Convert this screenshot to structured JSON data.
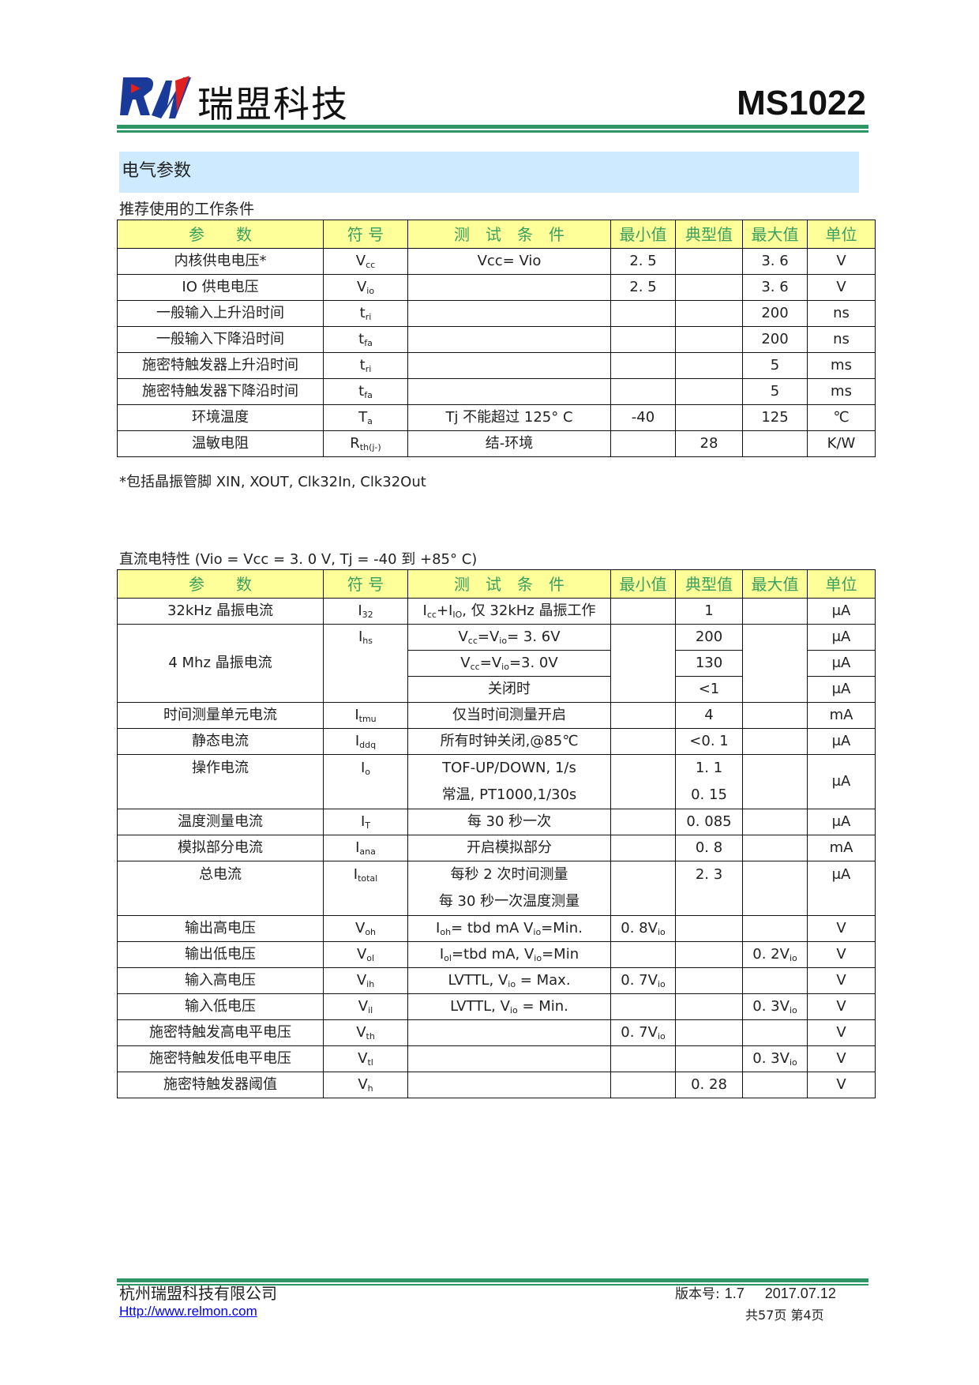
{
  "header": {
    "company": "瑞盟科技",
    "logo_text": "RM",
    "model": "MS1022",
    "brand_color": "#2e9565"
  },
  "section": {
    "title": "电气参数"
  },
  "rec": {
    "title": "推荐使用的工作条件",
    "headers": [
      "参　　数",
      "符 号",
      "测　试　条　件",
      "最小值",
      "典型值",
      "最大值",
      "单位"
    ],
    "rows": [
      {
        "param": "内核供电电压*",
        "sym": [
          "V",
          "cc"
        ],
        "cond": "Vcc= Vio",
        "min": "2. 5",
        "typ": "",
        "max": "3. 6",
        "unit": "V"
      },
      {
        "param": "IO 供电电压",
        "sym": [
          "V",
          "io"
        ],
        "cond": "",
        "min": "2. 5",
        "typ": "",
        "max": "3. 6",
        "unit": "V"
      },
      {
        "param": "一般输入上升沿时间",
        "sym": [
          "t",
          "ri"
        ],
        "cond": "",
        "min": "",
        "typ": "",
        "max": "200",
        "unit": "ns"
      },
      {
        "param": "一般输入下降沿时间",
        "sym": [
          "t",
          "fa"
        ],
        "cond": "",
        "min": "",
        "typ": "",
        "max": "200",
        "unit": "ns"
      },
      {
        "param": "施密特触发器上升沿时间",
        "sym": [
          "t",
          "ri"
        ],
        "cond": "",
        "min": "",
        "typ": "",
        "max": "5",
        "unit": "ms"
      },
      {
        "param": "施密特触发器下降沿时间",
        "sym": [
          "t",
          "fa"
        ],
        "cond": "",
        "min": "",
        "typ": "",
        "max": "5",
        "unit": "ms"
      },
      {
        "param": "环境温度",
        "sym": [
          "T",
          "a"
        ],
        "cond": "Tj 不能超过 125° C",
        "min": "-40",
        "typ": "",
        "max": "125",
        "unit": "℃"
      },
      {
        "param": "温敏电阻",
        "sym": [
          "R",
          "th(j-)"
        ],
        "cond": "结-环境",
        "min": "",
        "typ": "28",
        "max": "",
        "unit": "K/W"
      }
    ],
    "footnote": "*包括晶振管脚 XIN, XOUT, Clk32In, Clk32Out"
  },
  "dc": {
    "title": "直流电特性 (Vio = Vcc = 3. 0 V, Tj = -40 到 +85° C)",
    "headers": [
      "参　　数",
      "符 号",
      "测　试　条　件",
      "最小值",
      "典型值",
      "最大值",
      "单位"
    ],
    "rows": [
      {
        "param": "32kHz 晶振电流",
        "sym": [
          "I",
          "32"
        ],
        "cond": [
          "I",
          "cc",
          "+I",
          "IO",
          ", 仅 32kHz 晶振工作"
        ],
        "typ": "1",
        "unit": "μA"
      },
      {
        "param": "4 Mhz 晶振电流",
        "sym": [
          "I",
          "hs"
        ],
        "sub": [
          {
            "cond": [
              "V",
              "cc",
              "=V",
              "io",
              "= 3. 6V"
            ],
            "typ": "200",
            "unit": "μA"
          },
          {
            "cond": [
              "V",
              "cc",
              "=V",
              "io",
              "=3. 0V"
            ],
            "typ": "130",
            "unit": "μA"
          },
          {
            "cond": [
              "关闭时"
            ],
            "typ": "<1",
            "unit": "μA"
          }
        ]
      },
      {
        "param": "时间测量单元电流",
        "sym": [
          "I",
          "tmu"
        ],
        "cond": [
          "仅当时间测量开启"
        ],
        "typ": "4",
        "unit": "mA"
      },
      {
        "param": "静态电流",
        "sym": [
          "I",
          "ddq"
        ],
        "cond": [
          "所有时钟关闭,@85℃"
        ],
        "typ": "<0. 1",
        "unit": "μA"
      },
      {
        "param": "操作电流",
        "sym": [
          "I",
          "o"
        ],
        "cond_lines": [
          "TOF-UP/DOWN, 1/s",
          "常温, PT1000,1/30s"
        ],
        "typ_lines": [
          "1. 1",
          "0. 15"
        ],
        "unit": "μA"
      },
      {
        "param": "温度测量电流",
        "sym": [
          "I",
          "T"
        ],
        "cond": [
          "每 30 秒一次"
        ],
        "typ": "0. 085",
        "unit": "μA"
      },
      {
        "param": "模拟部分电流",
        "sym": [
          "I",
          "ana"
        ],
        "cond": [
          "开启模拟部分"
        ],
        "typ": "0. 8",
        "unit": "mA"
      },
      {
        "param": "总电流",
        "sym": [
          "I",
          "total"
        ],
        "cond_lines": [
          "每秒 2 次时间测量",
          "每 30 秒一次温度测量"
        ],
        "typ": "2. 3",
        "unit": "μA"
      },
      {
        "param": "输出高电压",
        "sym": [
          "V",
          "oh"
        ],
        "cond": [
          "I",
          "oh",
          "= tbd mA V",
          "io",
          "=Min."
        ],
        "min": [
          "0. 8V",
          "io"
        ],
        "unit": "V"
      },
      {
        "param": "输出低电压",
        "sym": [
          "V",
          "ol"
        ],
        "cond": [
          "I",
          "ol",
          "=tbd mA, V",
          "io",
          "=Min"
        ],
        "max": [
          "0. 2V",
          "io"
        ],
        "unit": "V"
      },
      {
        "param": "输入高电压",
        "sym": [
          "V",
          "ih"
        ],
        "cond": [
          "LVTTL,  V",
          "io",
          " = Max."
        ],
        "min": [
          "0. 7V",
          "io"
        ],
        "unit": "V"
      },
      {
        "param": "输入低电压",
        "sym": [
          "V",
          "il"
        ],
        "cond": [
          "LVTTL,  V",
          "io",
          " = Min."
        ],
        "max": [
          "0. 3V",
          "io"
        ],
        "unit": "V"
      },
      {
        "param": "施密特触发高电平电压",
        "sym": [
          "V",
          "th"
        ],
        "min": [
          "0. 7V",
          "io"
        ],
        "unit": "V"
      },
      {
        "param": "施密特触发低电平电压",
        "sym": [
          "V",
          "tl"
        ],
        "max": [
          "0. 3V",
          "io"
        ],
        "unit": "V"
      },
      {
        "param": "施密特触发器阈值",
        "sym": [
          "V",
          "h"
        ],
        "typ": "0. 28",
        "unit": "V"
      }
    ]
  },
  "footer": {
    "company": "杭州瑞盟科技有限公司",
    "link": "Http://www.relmon.com",
    "version_label": "版本号:",
    "version": "1.7",
    "date": "2017.07.12",
    "pages": "共57页 第4页"
  }
}
